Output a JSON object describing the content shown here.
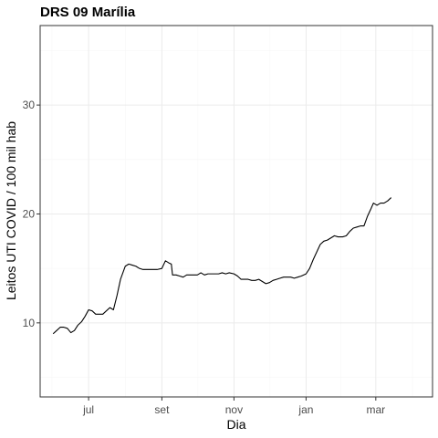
{
  "chart_data": {
    "type": "line",
    "title": "DRS 09 Marília",
    "xlabel": "Dia",
    "ylabel": "Leitos UTI COVID / 100 mil hab",
    "x_ticks": [
      {
        "label": "jul",
        "date": "2020-07-01"
      },
      {
        "label": "set",
        "date": "2020-09-01"
      },
      {
        "label": "nov",
        "date": "2020-11-01"
      },
      {
        "label": "jan",
        "date": "2021-01-01"
      },
      {
        "label": "mar",
        "date": "2021-03-01"
      }
    ],
    "y_ticks": [
      10,
      20,
      30
    ],
    "xlim": [
      "2020-05-21",
      "2021-04-18"
    ],
    "ylim": [
      3.2,
      37.3
    ],
    "grid": true,
    "colors": {
      "line": "#000000",
      "grid_major": "#ebebeb",
      "grid_minor": "#f5f5f5",
      "panel_border": "#333333",
      "tick_label": "#4d4d4d"
    },
    "series": [
      {
        "points": [
          [
            "2020-06-01",
            9.0
          ],
          [
            "2020-06-04",
            9.3
          ],
          [
            "2020-06-07",
            9.6
          ],
          [
            "2020-06-10",
            9.6
          ],
          [
            "2020-06-13",
            9.5
          ],
          [
            "2020-06-16",
            9.1
          ],
          [
            "2020-06-19",
            9.3
          ],
          [
            "2020-06-22",
            9.8
          ],
          [
            "2020-06-25",
            10.1
          ],
          [
            "2020-06-28",
            10.6
          ],
          [
            "2020-07-01",
            11.2
          ],
          [
            "2020-07-04",
            11.1
          ],
          [
            "2020-07-07",
            10.8
          ],
          [
            "2020-07-10",
            10.8
          ],
          [
            "2020-07-13",
            10.8
          ],
          [
            "2020-07-16",
            11.1
          ],
          [
            "2020-07-19",
            11.4
          ],
          [
            "2020-07-22",
            11.2
          ],
          [
            "2020-07-25",
            12.5
          ],
          [
            "2020-07-28",
            14.0
          ],
          [
            "2020-08-01",
            15.2
          ],
          [
            "2020-08-04",
            15.4
          ],
          [
            "2020-08-07",
            15.3
          ],
          [
            "2020-08-10",
            15.2
          ],
          [
            "2020-08-13",
            15.0
          ],
          [
            "2020-08-16",
            14.9
          ],
          [
            "2020-08-19",
            14.9
          ],
          [
            "2020-08-22",
            14.9
          ],
          [
            "2020-08-25",
            14.9
          ],
          [
            "2020-08-28",
            14.9
          ],
          [
            "2020-09-01",
            15.0
          ],
          [
            "2020-09-04",
            15.7
          ],
          [
            "2020-09-07",
            15.5
          ],
          [
            "2020-09-09",
            15.4
          ],
          [
            "2020-09-10",
            14.4
          ],
          [
            "2020-09-13",
            14.4
          ],
          [
            "2020-09-16",
            14.3
          ],
          [
            "2020-09-19",
            14.2
          ],
          [
            "2020-09-22",
            14.4
          ],
          [
            "2020-09-25",
            14.4
          ],
          [
            "2020-09-28",
            14.4
          ],
          [
            "2020-10-01",
            14.4
          ],
          [
            "2020-10-04",
            14.6
          ],
          [
            "2020-10-07",
            14.4
          ],
          [
            "2020-10-10",
            14.5
          ],
          [
            "2020-10-13",
            14.5
          ],
          [
            "2020-10-16",
            14.5
          ],
          [
            "2020-10-19",
            14.5
          ],
          [
            "2020-10-22",
            14.6
          ],
          [
            "2020-10-25",
            14.5
          ],
          [
            "2020-10-28",
            14.6
          ],
          [
            "2020-11-01",
            14.5
          ],
          [
            "2020-11-04",
            14.3
          ],
          [
            "2020-11-07",
            14.0
          ],
          [
            "2020-11-10",
            14.0
          ],
          [
            "2020-11-13",
            14.0
          ],
          [
            "2020-11-16",
            13.9
          ],
          [
            "2020-11-19",
            13.9
          ],
          [
            "2020-11-22",
            14.0
          ],
          [
            "2020-11-25",
            13.8
          ],
          [
            "2020-11-28",
            13.6
          ],
          [
            "2020-12-01",
            13.7
          ],
          [
            "2020-12-04",
            13.9
          ],
          [
            "2020-12-07",
            14.0
          ],
          [
            "2020-12-10",
            14.1
          ],
          [
            "2020-12-13",
            14.2
          ],
          [
            "2020-12-16",
            14.2
          ],
          [
            "2020-12-19",
            14.2
          ],
          [
            "2020-12-22",
            14.1
          ],
          [
            "2020-12-25",
            14.2
          ],
          [
            "2020-12-28",
            14.3
          ],
          [
            "2021-01-01",
            14.5
          ],
          [
            "2021-01-04",
            15.0
          ],
          [
            "2021-01-07",
            15.8
          ],
          [
            "2021-01-10",
            16.5
          ],
          [
            "2021-01-13",
            17.2
          ],
          [
            "2021-01-16",
            17.5
          ],
          [
            "2021-01-19",
            17.6
          ],
          [
            "2021-01-22",
            17.8
          ],
          [
            "2021-01-25",
            18.0
          ],
          [
            "2021-01-28",
            17.9
          ],
          [
            "2021-02-01",
            17.9
          ],
          [
            "2021-02-04",
            18.0
          ],
          [
            "2021-02-07",
            18.4
          ],
          [
            "2021-02-10",
            18.7
          ],
          [
            "2021-02-13",
            18.8
          ],
          [
            "2021-02-16",
            18.9
          ],
          [
            "2021-02-19",
            18.9
          ],
          [
            "2021-02-22",
            19.8
          ],
          [
            "2021-02-25",
            20.5
          ],
          [
            "2021-02-27",
            21.0
          ],
          [
            "2021-03-02",
            20.8
          ],
          [
            "2021-03-05",
            21.0
          ],
          [
            "2021-03-08",
            21.0
          ],
          [
            "2021-03-11",
            21.2
          ],
          [
            "2021-03-14",
            21.5
          ]
        ]
      }
    ]
  }
}
